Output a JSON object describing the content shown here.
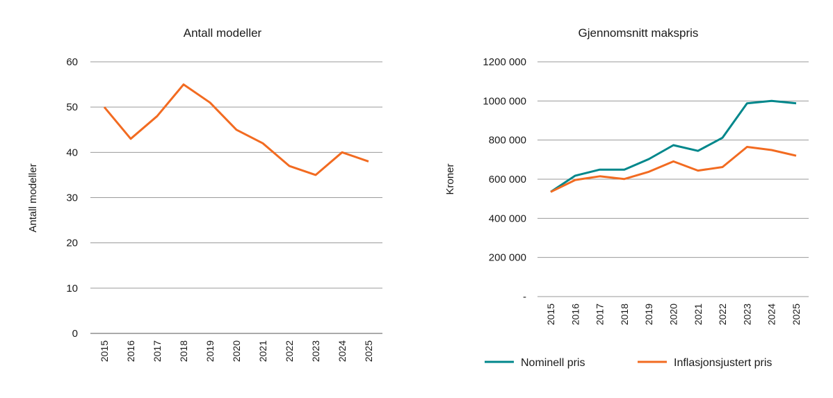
{
  "chart_data": [
    {
      "type": "line",
      "title": "Antall modeller",
      "xlabel": "",
      "ylabel": "Antall modeller",
      "ylim": [
        0,
        60
      ],
      "yticks": [
        0,
        10,
        20,
        30,
        40,
        50,
        60
      ],
      "ytick_labels": [
        "0",
        "10",
        "20",
        "30",
        "40",
        "50",
        "60"
      ],
      "grid": true,
      "categories": [
        "2015",
        "2016",
        "2017",
        "2018",
        "2019",
        "2020",
        "2021",
        "2022",
        "2023",
        "2024",
        "2025"
      ],
      "series": [
        {
          "values": [
            50,
            43,
            48,
            55,
            51,
            45,
            42,
            37,
            35,
            40,
            38
          ],
          "color": "#f26b21"
        }
      ]
    },
    {
      "type": "line",
      "title": "Gjennomsnitt makspris",
      "xlabel": "",
      "ylabel": "Kroner",
      "ylim": [
        0,
        1200000
      ],
      "yticks": [
        0,
        200000,
        400000,
        600000,
        800000,
        1000000,
        1200000
      ],
      "ytick_labels": [
        "-",
        "200 000",
        "400 000",
        "600 000",
        "800 000",
        "1000 000",
        "1200 000"
      ],
      "grid": true,
      "legend_position": "bottom",
      "categories": [
        "2015",
        "2016",
        "2017",
        "2018",
        "2019",
        "2020",
        "2021",
        "2022",
        "2023",
        "2024",
        "2025"
      ],
      "series": [
        {
          "name": "Nominell pris",
          "values": [
            535000,
            618000,
            649000,
            649000,
            703000,
            774000,
            745000,
            812000,
            988000,
            1000000,
            988000
          ],
          "color": "#00878b"
        },
        {
          "name": "Inflasjonsjustert pris",
          "values": [
            535000,
            596000,
            615000,
            601000,
            638000,
            691000,
            644000,
            662000,
            765000,
            749000,
            720000
          ],
          "color": "#f26b21"
        }
      ]
    }
  ]
}
